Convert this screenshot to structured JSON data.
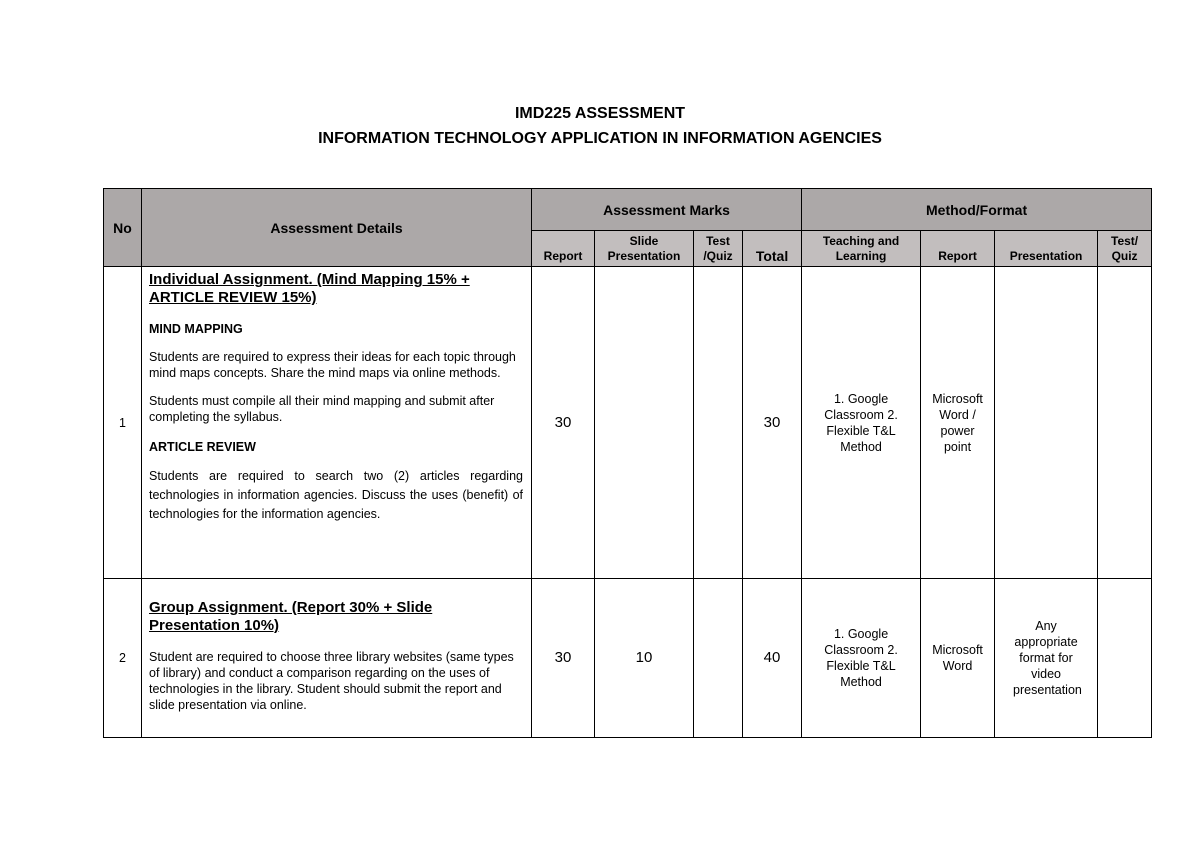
{
  "title": {
    "line1": "IMD225 ASSESSMENT",
    "line2": "INFORMATION TECHNOLOGY APPLICATION IN INFORMATION AGENCIES"
  },
  "headers": {
    "no": "No",
    "details": "Assessment Details",
    "marks": "Assessment Marks",
    "method": "Method/Format",
    "marks_cols": [
      "Report",
      "Slide Presentation",
      "Test /Quiz",
      "Total"
    ],
    "method_cols": [
      "Teaching and Learning",
      "Report",
      "Presentation",
      "Test/ Quiz"
    ]
  },
  "rows": [
    {
      "no": "1",
      "heading": "Individual Assignment. (Mind Mapping 15% + ARTICLE REVIEW 15%)",
      "sub1": "MIND MAPPING",
      "p1": "Students are required to express their ideas for each topic through mind maps concepts. Share the mind maps via online methods.",
      "p2": "Students must compile all their mind mapping and submit after completing the syllabus.",
      "sub2": "ARTICLE REVIEW",
      "p3": "Students are required to search two (2) articles regarding technologies in information agencies. Discuss the uses (benefit) of technologies for the information agencies.",
      "report": "30",
      "slide": "",
      "test": "",
      "total": "30",
      "teaching": "1. Google Classroom 2. Flexible T&L Method",
      "m_report": "Microsoft Word / power point",
      "m_presentation": "",
      "m_test": ""
    },
    {
      "no": "2",
      "heading": "Group Assignment. (Report 30% + Slide Presentation 10%)",
      "p1": "Student are required to choose three library websites (same types of library) and conduct a comparison regarding on the uses of technologies in the library. Student should submit the report and slide presentation via online.",
      "report": "30",
      "slide": "10",
      "test": "",
      "total": "40",
      "teaching": "1. Google Classroom 2. Flexible T&L Method",
      "m_report": "Microsoft Word",
      "m_presentation": "Any appropriate format for video presentation",
      "m_test": ""
    }
  ]
}
